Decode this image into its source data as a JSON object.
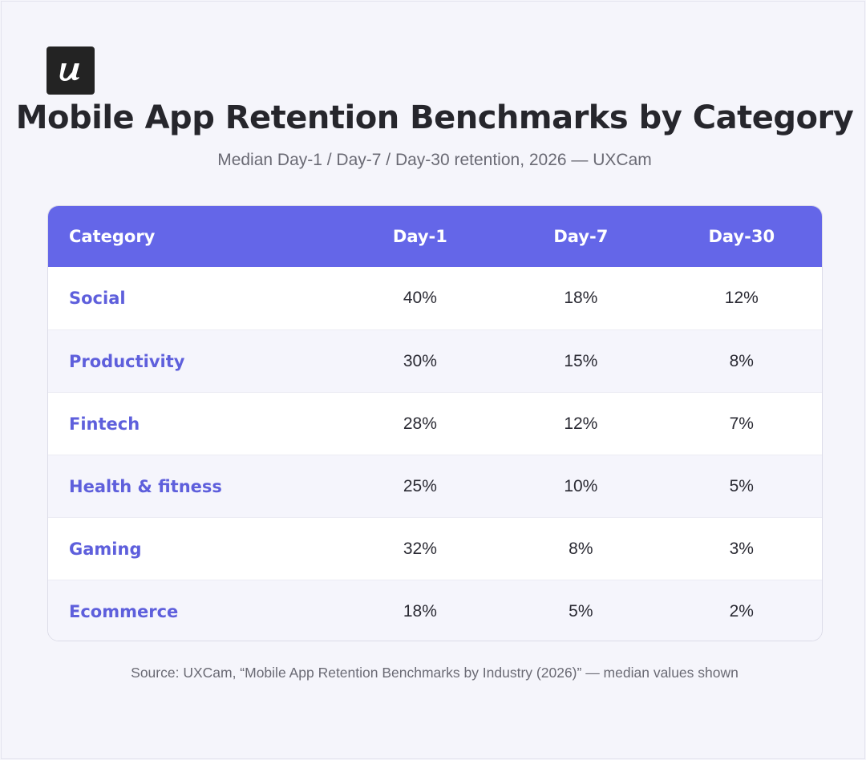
{
  "brand": {
    "logo_icon": "userpilot-u-logo-icon",
    "logo_glyph": "u",
    "accent": "#6466e8",
    "category_color": "#5e5fdc"
  },
  "header": {
    "title": "Mobile App Retention Benchmarks by Category",
    "subtitle": "Median Day-1 / Day-7 / Day-30 retention, 2026 — UXCam"
  },
  "chart_data": {
    "type": "table",
    "columns": [
      "Category",
      "Day-1",
      "Day-7",
      "Day-30"
    ],
    "rows": [
      {
        "category": "Social",
        "day1": "40%",
        "day7": "18%",
        "day30": "12%"
      },
      {
        "category": "Productivity",
        "day1": "30%",
        "day7": "15%",
        "day30": "8%"
      },
      {
        "category": "Fintech",
        "day1": "28%",
        "day7": "12%",
        "day30": "7%"
      },
      {
        "category": "Health & fitness",
        "day1": "25%",
        "day7": "10%",
        "day30": "5%"
      },
      {
        "category": "Gaming",
        "day1": "32%",
        "day7": "8%",
        "day30": "3%"
      },
      {
        "category": "Ecommerce",
        "day1": "18%",
        "day7": "5%",
        "day30": "2%"
      }
    ]
  },
  "footer": {
    "source": "Source: UXCam, “Mobile App Retention Benchmarks by Industry (2026)” — median values shown"
  }
}
